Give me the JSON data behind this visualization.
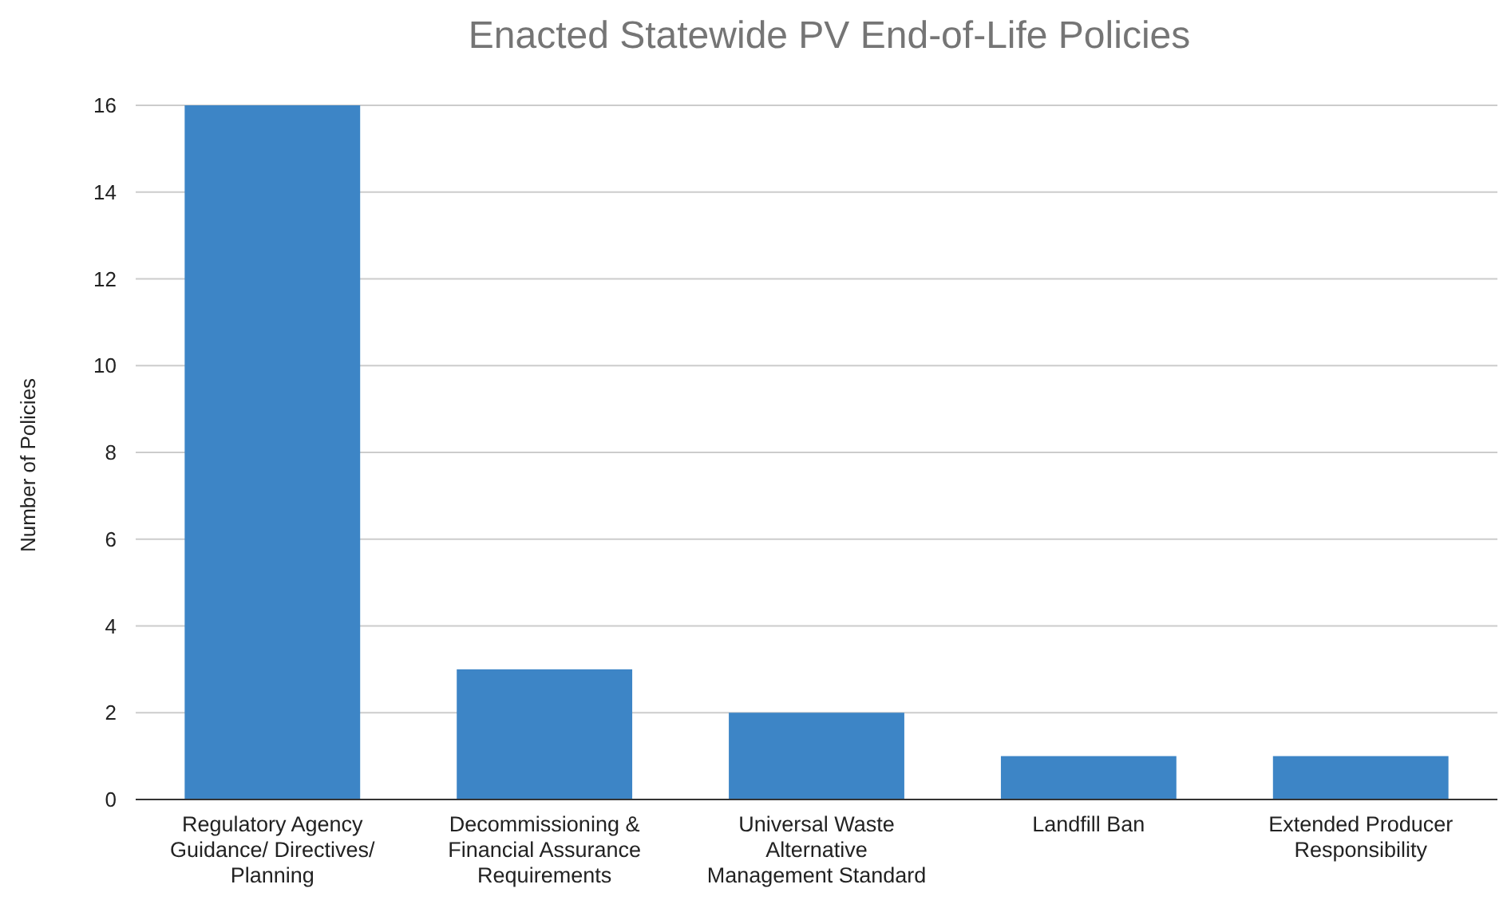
{
  "chart_data": {
    "type": "bar",
    "title": "Enacted Statewide PV End-of-Life Policies",
    "ylabel": "Number of Policies",
    "categories": [
      "Regulatory Agency Guidance/ Directives/ Planning",
      "Decommissioning & Financial Assurance Requirements",
      "Universal Waste Alternative Management Standard",
      "Landfill Ban",
      "Extended Producer Responsibility"
    ],
    "values": [
      16,
      3,
      2,
      1,
      1
    ],
    "color": "#3d85c6",
    "ylim": [
      0,
      16
    ],
    "yticks": [
      0,
      2,
      4,
      6,
      8,
      10,
      12,
      14,
      16
    ],
    "grid": "y"
  }
}
